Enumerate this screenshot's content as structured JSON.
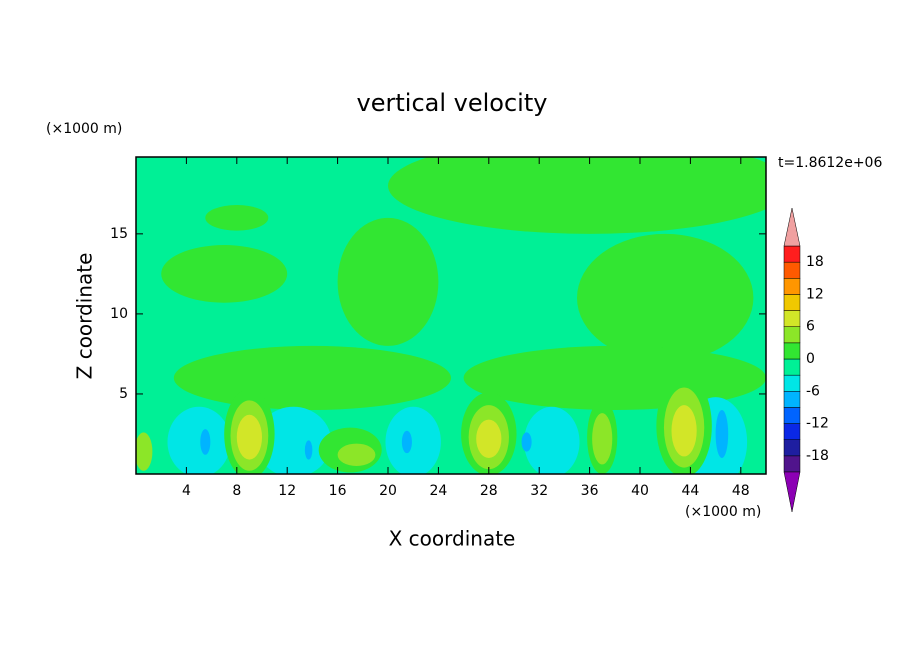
{
  "chart_data": {
    "type": "contour",
    "title": "vertical velocity",
    "time_label": "t=1.8612e+06",
    "x_label": "X coordinate",
    "y_label": "Z coordinate",
    "x_unit": "(×1000 m)",
    "y_unit": "(×1000 m)",
    "xlim": [
      0,
      50
    ],
    "ylim": [
      0,
      19.8
    ],
    "xticks": [
      4,
      8,
      12,
      16,
      20,
      24,
      28,
      32,
      36,
      40,
      44,
      48
    ],
    "yticks": [
      5,
      10,
      15
    ],
    "levels": [
      -21,
      -18,
      -15,
      -12,
      -9,
      -6,
      -3,
      0,
      3,
      6,
      9,
      12,
      15,
      18,
      21
    ],
    "colors": [
      "#50148c",
      "#1e1ea0",
      "#0a28e6",
      "#0064ff",
      "#00b4ff",
      "#00e6e6",
      "#00f096",
      "#32e632",
      "#8ce628",
      "#d2e628",
      "#f0c800",
      "#ff9600",
      "#ff5a00",
      "#ff1e1e"
    ],
    "under_color": "#8c00b4",
    "over_color": "#f0a0a0",
    "colorbar_ticks": [
      -18,
      -12,
      -6,
      0,
      6,
      12,
      18
    ],
    "background_value": -1,
    "features": [
      {
        "x": 36,
        "z": 18,
        "rx": 16,
        "rz": 3,
        "value": 1
      },
      {
        "x": 42,
        "z": 11,
        "rx": 7,
        "rz": 4,
        "value": 1
      },
      {
        "x": 7,
        "z": 12.5,
        "rx": 5,
        "rz": 1.8,
        "value": 1
      },
      {
        "x": 20,
        "z": 12,
        "rx": 4,
        "rz": 4,
        "value": 1
      },
      {
        "x": 8,
        "z": 16,
        "rx": 2.5,
        "rz": 0.8,
        "value": 1
      },
      {
        "x": 14,
        "z": 6,
        "rx": 11,
        "rz": 2,
        "value": 1
      },
      {
        "x": 38,
        "z": 6,
        "rx": 12,
        "rz": 2,
        "value": 1
      },
      {
        "x": 5,
        "z": 2,
        "rx": 2.5,
        "rz": 2.2,
        "value": -4
      },
      {
        "x": 12.5,
        "z": 2,
        "rx": 3,
        "rz": 2.2,
        "value": -4
      },
      {
        "x": 22,
        "z": 2,
        "rx": 2.2,
        "rz": 2.2,
        "value": -4
      },
      {
        "x": 33,
        "z": 2,
        "rx": 2.2,
        "rz": 2.2,
        "value": -4
      },
      {
        "x": 46,
        "z": 2,
        "rx": 2.5,
        "rz": 2.8,
        "value": -4
      },
      {
        "x": 17,
        "z": 1.5,
        "rx": 2.5,
        "rz": 1.4,
        "value": 2
      },
      {
        "x": 17.5,
        "z": 1.2,
        "rx": 1.5,
        "rz": 0.7,
        "value": 4
      },
      {
        "x": 0.6,
        "z": 1.4,
        "rx": 0.7,
        "rz": 1.2,
        "value": 4
      },
      {
        "x": 5.5,
        "z": 2,
        "rx": 0.4,
        "rz": 0.8,
        "value": -7
      },
      {
        "x": 13.7,
        "z": 1.5,
        "rx": 0.3,
        "rz": 0.6,
        "value": -7
      },
      {
        "x": 21.5,
        "z": 2,
        "rx": 0.4,
        "rz": 0.7,
        "value": -7
      },
      {
        "x": 31,
        "z": 2,
        "rx": 0.4,
        "rz": 0.6,
        "value": -7
      },
      {
        "x": 46.5,
        "z": 2.5,
        "rx": 0.5,
        "rz": 1.5,
        "value": -7
      },
      {
        "x": 9,
        "z": 2.5,
        "rx": 2,
        "rz": 2.8,
        "value": 2
      },
      {
        "x": 9,
        "z": 2.4,
        "rx": 1.5,
        "rz": 2.2,
        "value": 5
      },
      {
        "x": 9,
        "z": 2.3,
        "rx": 1,
        "rz": 1.4,
        "value": 8
      },
      {
        "x": 28,
        "z": 2.5,
        "rx": 2.2,
        "rz": 2.6,
        "value": 2
      },
      {
        "x": 28,
        "z": 2.3,
        "rx": 1.6,
        "rz": 2,
        "value": 5
      },
      {
        "x": 28,
        "z": 2.2,
        "rx": 1,
        "rz": 1.2,
        "value": 8
      },
      {
        "x": 37,
        "z": 2.3,
        "rx": 1.2,
        "rz": 2.3,
        "value": 2
      },
      {
        "x": 37,
        "z": 2.2,
        "rx": 0.8,
        "rz": 1.6,
        "value": 5
      },
      {
        "x": 43.5,
        "z": 3,
        "rx": 2.2,
        "rz": 3.2,
        "value": 2
      },
      {
        "x": 43.5,
        "z": 2.9,
        "rx": 1.6,
        "rz": 2.5,
        "value": 5
      },
      {
        "x": 43.5,
        "z": 2.7,
        "rx": 1,
        "rz": 1.6,
        "value": 8
      }
    ]
  }
}
